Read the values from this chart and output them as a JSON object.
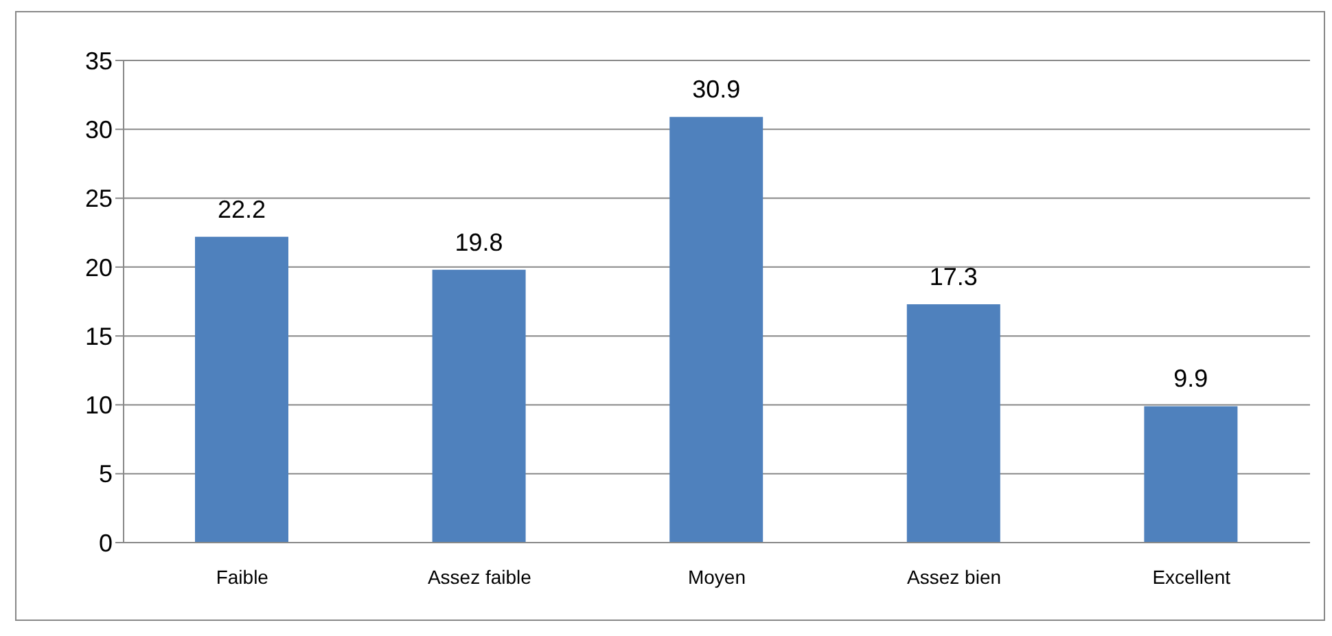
{
  "chart_data": {
    "type": "bar",
    "categories": [
      "Faible",
      "Assez faible",
      "Moyen",
      "Assez bien",
      "Excellent"
    ],
    "values": [
      22.2,
      19.8,
      30.9,
      17.3,
      9.9
    ],
    "color": "#4f81bd",
    "ylim": [
      0,
      35
    ],
    "yticks": [
      0,
      5,
      10,
      15,
      20,
      25,
      30,
      35
    ],
    "grid": "y",
    "data_labels": true
  }
}
